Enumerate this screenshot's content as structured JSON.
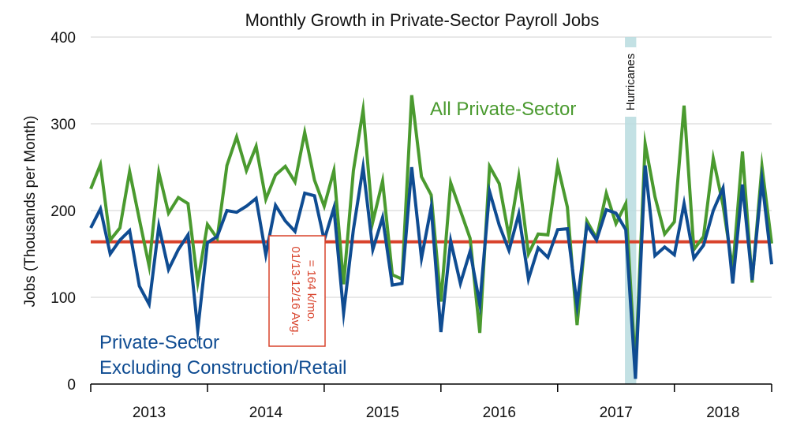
{
  "chart_data": {
    "type": "line",
    "title": "Monthly Growth in Private-Sector Payroll Jobs",
    "ylabel": "Jobs (Thousands per Month)",
    "xlabel": "",
    "ylim": [
      0,
      400
    ],
    "yticks": [
      0,
      100,
      200,
      300,
      400
    ],
    "year_labels": [
      "2013",
      "2014",
      "2015",
      "2016",
      "2017",
      "2018"
    ],
    "x_start": "2013-01",
    "grid": true,
    "series": [
      {
        "name": "All Private-Sector",
        "color": "#4a9a2f",
        "values": [
          225,
          253,
          166,
          180,
          245,
          190,
          136,
          244,
          197,
          215,
          208,
          117,
          184,
          168,
          252,
          285,
          246,
          274,
          213,
          241,
          251,
          233,
          290,
          235,
          205,
          246,
          115,
          246,
          316,
          187,
          234,
          126,
          121,
          333,
          239,
          218,
          95,
          232,
          200,
          168,
          59,
          251,
          231,
          170,
          239,
          150,
          173,
          172,
          252,
          204,
          68,
          188,
          168,
          220,
          185,
          208,
          18,
          277,
          216,
          173,
          187,
          321,
          155,
          170,
          260,
          206,
          132,
          268,
          117,
          251,
          162
        ]
      },
      {
        "name": "Private-Sector Excluding Construction/Retail",
        "color": "#0f4c92",
        "values": [
          180,
          202,
          150,
          166,
          177,
          113,
          92,
          182,
          132,
          155,
          172,
          62,
          163,
          170,
          200,
          198,
          205,
          214,
          149,
          206,
          188,
          176,
          220,
          217,
          166,
          203,
          82,
          178,
          250,
          155,
          192,
          114,
          116,
          250,
          145,
          204,
          60,
          165,
          116,
          153,
          92,
          222,
          183,
          154,
          196,
          121,
          157,
          146,
          178,
          179,
          91,
          183,
          166,
          201,
          197,
          178,
          6,
          252,
          148,
          158,
          149,
          208,
          145,
          160,
          200,
          226,
          116,
          230,
          120,
          235,
          138
        ]
      }
    ],
    "series_labels": {
      "green": "All Private-Sector",
      "blue_line1": "Private-Sector",
      "blue_line2": "Excluding Construction/Retail"
    },
    "average": {
      "value": 164,
      "color": "#d8432c",
      "label_line1": "01/13-12/16 Avg.",
      "label_line2": "= 164 k/mo."
    },
    "highlight_band": {
      "label": "Hurricanes",
      "start_month": "2017-08",
      "end_month": "2017-09",
      "color": "#b9dcdf"
    }
  }
}
